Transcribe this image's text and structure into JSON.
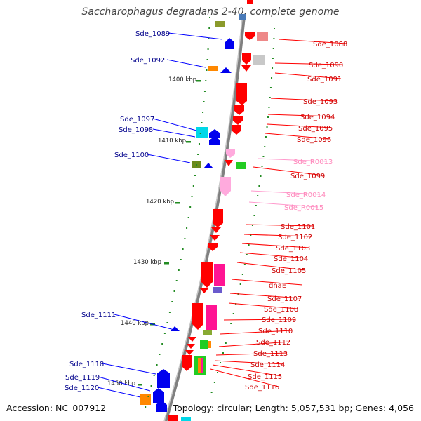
{
  "title": "Saccharophagus degradans 2-40, complete genome",
  "footer": {
    "accession": "Accession: NC_007912",
    "summary": "Topology: circular; Length: 5,057,531 bp; Genes: 4,056"
  },
  "colors": {
    "forward": "#ff0000",
    "reverse": "#0000ff",
    "rna": "#ff99cc",
    "ruler_tick": "#228b22",
    "backbone": "#808080"
  },
  "scale_labels": [
    "1400 kbp",
    "1410 kbp",
    "1420 kbp",
    "1430 kbp",
    "1440 kbp",
    "1450 kbp"
  ],
  "left_labels": [
    "Sde_1089",
    "Sde_1092",
    "Sde_1097",
    "Sde_1098",
    "Sde_1100",
    "Sde_1111",
    "Sde_1118",
    "Sde_1119",
    "Sde_1120"
  ],
  "right_labels": [
    {
      "text": "Sde_1088",
      "kind": "forward"
    },
    {
      "text": "Sde_1090",
      "kind": "forward"
    },
    {
      "text": "Sde_1091",
      "kind": "forward"
    },
    {
      "text": "Sde_1093",
      "kind": "forward"
    },
    {
      "text": "Sde_1094",
      "kind": "forward"
    },
    {
      "text": "Sde_1095",
      "kind": "forward"
    },
    {
      "text": "Sde_1096",
      "kind": "forward"
    },
    {
      "text": "Sde_R0013",
      "kind": "rna"
    },
    {
      "text": "Sde_1099",
      "kind": "forward"
    },
    {
      "text": "Sde_R0014",
      "kind": "rna"
    },
    {
      "text": "Sde_R0015",
      "kind": "rna"
    },
    {
      "text": "Sde_1101",
      "kind": "forward"
    },
    {
      "text": "Sde_1102",
      "kind": "forward"
    },
    {
      "text": "Sde_1103",
      "kind": "forward"
    },
    {
      "text": "Sde_1104",
      "kind": "forward"
    },
    {
      "text": "Sde_1105",
      "kind": "forward"
    },
    {
      "text": "dnaE",
      "kind": "forward"
    },
    {
      "text": "Sde_1107",
      "kind": "forward"
    },
    {
      "text": "Sde_1108",
      "kind": "forward"
    },
    {
      "text": "Sde_1109",
      "kind": "forward"
    },
    {
      "text": "Sde_1110",
      "kind": "forward"
    },
    {
      "text": "Sde_1112",
      "kind": "forward"
    },
    {
      "text": "Sde_1113",
      "kind": "forward"
    },
    {
      "text": "Sde_1114",
      "kind": "forward"
    },
    {
      "text": "Sde_1115",
      "kind": "forward"
    },
    {
      "text": "Sde_1116",
      "kind": "forward"
    }
  ]
}
